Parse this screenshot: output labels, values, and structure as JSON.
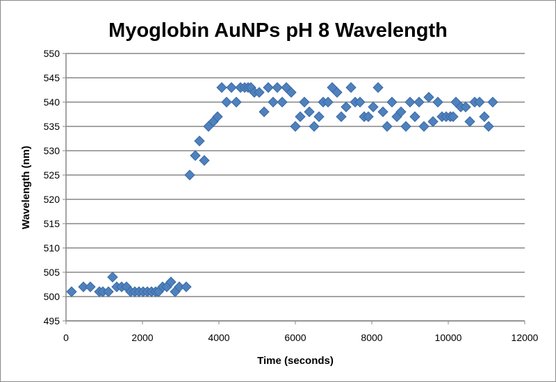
{
  "chart_data": {
    "type": "scatter",
    "title": "Myoglobin AuNPs pH 8 Wavelength",
    "xlabel": "Time (seconds)",
    "ylabel": "Wavelength (nm)",
    "xlim": [
      0,
      12000
    ],
    "ylim": [
      495,
      550
    ],
    "xticks": [
      "0",
      "2000",
      "4000",
      "6000",
      "8000",
      "10000",
      "12000"
    ],
    "yticks": [
      "495",
      "500",
      "505",
      "510",
      "515",
      "520",
      "525",
      "530",
      "535",
      "540",
      "545",
      "550"
    ],
    "grid": "horizontal",
    "legend": "none",
    "marker": "diamond",
    "marker_color": "#4f81bd",
    "points": [
      [
        145,
        501
      ],
      [
        455,
        502
      ],
      [
        636,
        502
      ],
      [
        873,
        501
      ],
      [
        964,
        501
      ],
      [
        1109,
        501
      ],
      [
        1218,
        504
      ],
      [
        1327,
        502
      ],
      [
        1455,
        502
      ],
      [
        1582,
        502
      ],
      [
        1690,
        501
      ],
      [
        1800,
        501
      ],
      [
        1909,
        501
      ],
      [
        2018,
        501
      ],
      [
        2127,
        501
      ],
      [
        2236,
        501
      ],
      [
        2345,
        501
      ],
      [
        2418,
        501
      ],
      [
        2527,
        502
      ],
      [
        2636,
        502
      ],
      [
        2745,
        503
      ],
      [
        2855,
        501
      ],
      [
        2964,
        502
      ],
      [
        3145,
        502
      ],
      [
        3236,
        525
      ],
      [
        3382,
        529
      ],
      [
        3491,
        532
      ],
      [
        3618,
        528
      ],
      [
        3727,
        535
      ],
      [
        3855,
        536
      ],
      [
        3964,
        537
      ],
      [
        4073,
        543
      ],
      [
        4200,
        540
      ],
      [
        4327,
        543
      ],
      [
        4455,
        540
      ],
      [
        4564,
        543
      ],
      [
        4673,
        543
      ],
      [
        4764,
        543
      ],
      [
        4836,
        543
      ],
      [
        4927,
        542
      ],
      [
        5055,
        542
      ],
      [
        5182,
        538
      ],
      [
        5291,
        543
      ],
      [
        5418,
        540
      ],
      [
        5527,
        543
      ],
      [
        5655,
        540
      ],
      [
        5764,
        543
      ],
      [
        5891,
        542
      ],
      [
        6000,
        535
      ],
      [
        6127,
        537
      ],
      [
        6236,
        540
      ],
      [
        6364,
        538
      ],
      [
        6491,
        535
      ],
      [
        6618,
        537
      ],
      [
        6727,
        540
      ],
      [
        6855,
        540
      ],
      [
        6964,
        543
      ],
      [
        7091,
        542
      ],
      [
        7200,
        537
      ],
      [
        7327,
        539
      ],
      [
        7455,
        543
      ],
      [
        7564,
        540
      ],
      [
        7691,
        540
      ],
      [
        7800,
        537
      ],
      [
        7909,
        537
      ],
      [
        8036,
        539
      ],
      [
        8164,
        543
      ],
      [
        8291,
        538
      ],
      [
        8400,
        535
      ],
      [
        8527,
        540
      ],
      [
        8655,
        537
      ],
      [
        8764,
        538
      ],
      [
        8891,
        535
      ],
      [
        9000,
        540
      ],
      [
        9127,
        537
      ],
      [
        9236,
        540
      ],
      [
        9364,
        535
      ],
      [
        9491,
        541
      ],
      [
        9600,
        536
      ],
      [
        9727,
        540
      ],
      [
        9836,
        537
      ],
      [
        9945,
        537
      ],
      [
        10055,
        537
      ],
      [
        10127,
        537
      ],
      [
        10200,
        540
      ],
      [
        10327,
        539
      ],
      [
        10455,
        539
      ],
      [
        10564,
        536
      ],
      [
        10691,
        540
      ],
      [
        10818,
        540
      ],
      [
        10945,
        537
      ],
      [
        11055,
        535
      ],
      [
        11164,
        540
      ]
    ]
  }
}
